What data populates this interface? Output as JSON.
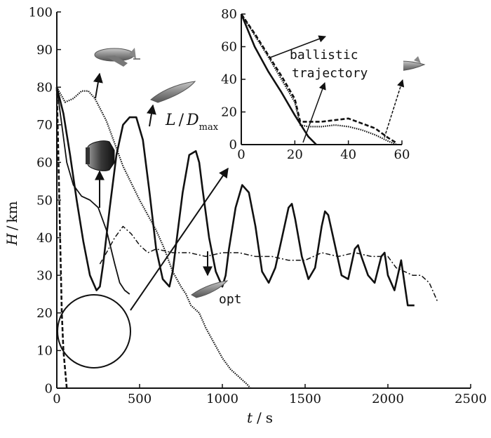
{
  "chart_data": [
    {
      "type": "line",
      "xlabel": {
        "var": "t",
        "unit": "s"
      },
      "ylabel": {
        "var": "H",
        "unit": "km"
      },
      "xlim": [
        0,
        2500
      ],
      "ylim": [
        0,
        100
      ],
      "xticks": [
        "0",
        "500",
        "1000",
        "1500",
        "2000",
        "2500"
      ],
      "yticks": [
        "0",
        "10",
        "20",
        "30",
        "40",
        "50",
        "60",
        "70",
        "80",
        "90",
        "100"
      ],
      "annotations": [
        {
          "id": "ld",
          "var": "L",
          "sep": "/",
          "sub_var": "D",
          "sub": "max"
        },
        {
          "id": "opt",
          "text": "opt"
        }
      ],
      "series": [
        {
          "style": "solid-thick",
          "color": "#111111",
          "x": [
            0,
            40,
            80,
            120,
            160,
            200,
            240,
            260,
            280,
            320,
            360,
            400,
            440,
            480,
            520,
            560,
            600,
            640,
            680,
            700,
            720,
            760,
            800,
            840,
            860,
            880,
            920,
            960,
            1000,
            1020,
            1040,
            1080,
            1120,
            1160,
            1200,
            1220,
            1240,
            1280,
            1320,
            1360,
            1400,
            1420,
            1440,
            1480,
            1520,
            1560,
            1600,
            1620,
            1640,
            1680,
            1720,
            1760,
            1800,
            1820,
            1840,
            1880,
            1920,
            1960,
            1980,
            2000,
            2040,
            2080,
            2120,
            2160
          ],
          "y": [
            80,
            73,
            62,
            50,
            39,
            30,
            26,
            27,
            33,
            48,
            62,
            70,
            72,
            72,
            66,
            52,
            37,
            29,
            27,
            31,
            38,
            52,
            62,
            63,
            60,
            53,
            40,
            31,
            27,
            30,
            37,
            48,
            54,
            52,
            43,
            37,
            31,
            28,
            32,
            40,
            48,
            49,
            45,
            35,
            29,
            32,
            43,
            47,
            46,
            38,
            30,
            29,
            37,
            38,
            35,
            30,
            28,
            35,
            36,
            30,
            26,
            34,
            22,
            22
          ]
        },
        {
          "style": "solid-thin",
          "color": "#222222",
          "x": [
            0,
            30,
            60,
            100,
            150,
            200,
            250,
            300,
            350,
            380,
            410,
            440
          ],
          "y": [
            80,
            70,
            60,
            54,
            51,
            50,
            48,
            42,
            33,
            28,
            26,
            25
          ]
        },
        {
          "style": "dotted-gray",
          "color": "#888888",
          "x": [
            0,
            50,
            100,
            150,
            190,
            230,
            300,
            400,
            500,
            600,
            650,
            700,
            750,
            780,
            810,
            860,
            900,
            950,
            1000,
            1050,
            1100,
            1150,
            1170
          ],
          "y": [
            80,
            76,
            77,
            79,
            79,
            77,
            71,
            59,
            50,
            42,
            37,
            31,
            27,
            25,
            22,
            20,
            16,
            12,
            8,
            5,
            3,
            1,
            0
          ]
        },
        {
          "style": "dash-dot",
          "color": "#222222",
          "x": [
            260,
            300,
            350,
            400,
            450,
            500,
            550,
            600,
            700,
            800,
            900,
            1000,
            1100,
            1200,
            1300,
            1400,
            1500,
            1600,
            1700,
            1800,
            1900,
            2000,
            2050,
            2100,
            2150,
            2200,
            2250,
            2300
          ],
          "y": [
            33,
            36,
            40,
            43,
            41,
            38,
            36,
            37,
            36,
            36,
            35,
            36,
            36,
            35,
            35,
            34,
            34,
            36,
            35,
            36,
            35,
            35,
            32,
            31,
            30,
            30,
            28,
            23
          ]
        },
        {
          "style": "dashed-thick",
          "color": "#111111",
          "x": [
            0,
            10,
            20,
            30,
            40,
            50,
            60
          ],
          "y": [
            80,
            60,
            40,
            20,
            10,
            5,
            0
          ]
        }
      ]
    },
    {
      "type": "line",
      "xlim": [
        0,
        60
      ],
      "ylim": [
        0,
        80
      ],
      "xticks": [
        "0",
        "20",
        "40",
        "60"
      ],
      "yticks": [
        "0",
        "20",
        "40",
        "60",
        "80"
      ],
      "annotations": [
        {
          "id": "ballistic",
          "lines": [
            "ballistic",
            "trajectory"
          ]
        }
      ],
      "series": [
        {
          "style": "solid-thick",
          "color": "#111111",
          "x": [
            0,
            5,
            10,
            15,
            20,
            25,
            28
          ],
          "y": [
            80,
            60,
            45,
            32,
            18,
            5,
            0
          ]
        },
        {
          "style": "dashed-thick",
          "color": "#222222",
          "x": [
            0,
            5,
            10,
            15,
            20,
            22,
            25,
            30,
            35,
            40,
            45,
            50,
            55,
            58
          ],
          "y": [
            80,
            68,
            55,
            42,
            28,
            14,
            14,
            14,
            15,
            16,
            13,
            10,
            4,
            1
          ]
        },
        {
          "style": "dotted-gray",
          "color": "#666666",
          "x": [
            0,
            5,
            10,
            15,
            20,
            22,
            25,
            30,
            35,
            40,
            45,
            50,
            55,
            58
          ],
          "y": [
            80,
            67,
            54,
            40,
            26,
            12,
            11,
            11,
            12,
            11,
            9,
            6,
            2,
            0
          ]
        }
      ]
    }
  ]
}
